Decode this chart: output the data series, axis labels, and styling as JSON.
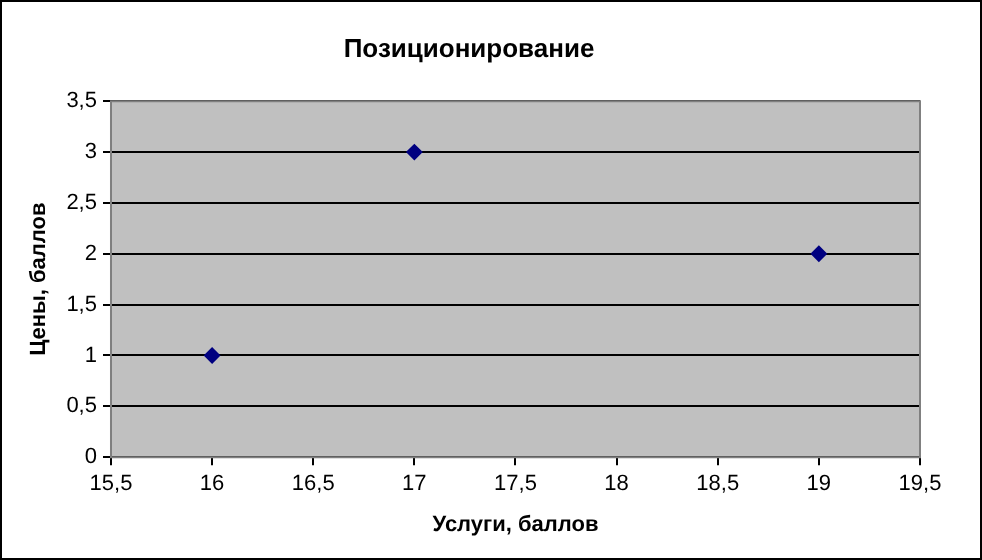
{
  "chart_data": {
    "type": "scatter",
    "title": "Позиционирование",
    "xlabel": "Услуги, баллов",
    "ylabel": "Цены, баллов",
    "x": [
      16,
      17,
      19
    ],
    "series": [
      {
        "color": "#000080",
        "values": [
          1,
          3,
          2
        ]
      }
    ],
    "xlim": [
      15.5,
      19.5
    ],
    "xticks": [
      {
        "value": 15.5,
        "label": "15,5"
      },
      16,
      {
        "value": 16.5,
        "label": "16,5"
      },
      17,
      {
        "value": 17.5,
        "label": "17,5"
      },
      18,
      {
        "value": 18.5,
        "label": "18,5"
      },
      19,
      {
        "value": 19.5,
        "label": "19,5"
      }
    ],
    "ylim": [
      0,
      3.5
    ],
    "yticks": [
      0,
      {
        "value": 0.5,
        "label": "0,5"
      },
      1,
      {
        "value": 1.5,
        "label": "1,5"
      },
      2,
      {
        "value": 2.5,
        "label": "2,5"
      },
      3,
      {
        "value": 3.5,
        "label": "3,5"
      }
    ],
    "grid": "y",
    "legend": false,
    "marker": "diamond"
  }
}
